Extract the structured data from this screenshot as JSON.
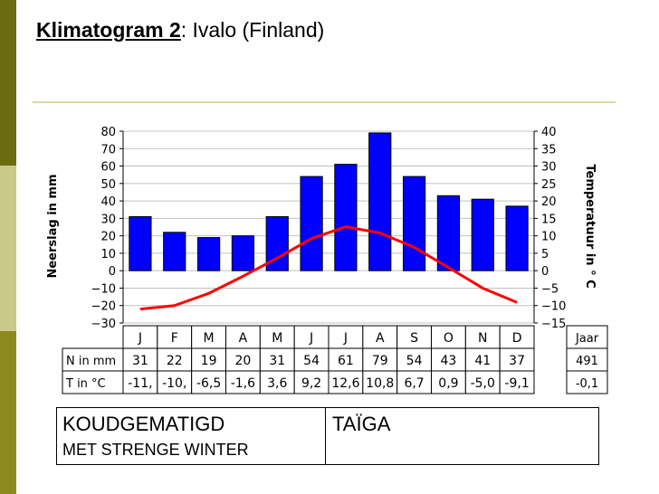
{
  "slide": {
    "title_bold": "Klimatogram 2",
    "title_rest": ": Ivalo (Finland)"
  },
  "chart_data": {
    "type": "bar",
    "categories": [
      "J",
      "F",
      "M",
      "A",
      "M",
      "J",
      "J",
      "A",
      "S",
      "O",
      "N",
      "D"
    ],
    "series": [
      {
        "name": "N in mm",
        "type": "bar",
        "axis": "left",
        "color": "#0000ff",
        "values": [
          31,
          22,
          19,
          20,
          31,
          54,
          61,
          79,
          54,
          43,
          41,
          37
        ]
      },
      {
        "name": "T in °C",
        "type": "line",
        "axis": "right",
        "color": "#ff0000",
        "values": [
          -11,
          -10,
          -6.5,
          -1.6,
          3.6,
          9.2,
          12.6,
          10.8,
          6.7,
          0.9,
          -5.0,
          -9.1
        ]
      }
    ],
    "ylabel_left": "Neerslag in mm",
    "ylabel_right": "Temperatuur in ° C",
    "ylim_left": [
      -30,
      80
    ],
    "ylim_right": [
      -15,
      40
    ],
    "yticks_left": [
      "80",
      "70",
      "60",
      "50",
      "40",
      "30",
      "20",
      "10",
      "0",
      "−10",
      "−20",
      "−30"
    ],
    "yticks_right": [
      "40",
      "35",
      "30",
      "25",
      "20",
      "15",
      "10",
      "5",
      "0",
      "−5",
      "−10",
      "−15"
    ],
    "grid": true,
    "table": {
      "row_labels": [
        "N in mm",
        "T in °C"
      ],
      "n_values": [
        "31",
        "22",
        "19",
        "20",
        "31",
        "54",
        "61",
        "79",
        "54",
        "43",
        "41",
        "37"
      ],
      "t_values": [
        "-11,",
        "-10,",
        "-6,5",
        "-1,6",
        "3,6",
        "9,2",
        "12,6",
        "10,8",
        "6,7",
        "0,9",
        "-5,0",
        "-9,1"
      ],
      "year_label": "Jaar",
      "year_n": "491",
      "year_t": "-0,1"
    }
  },
  "box": {
    "climate": "KOUDGEMATIGD",
    "subtype": "MET STRENGE WINTER",
    "vegetation": "TAÏGA"
  },
  "colors": {
    "bar": "#0000ff",
    "line": "#ff0000",
    "grid": "#c0c0c0",
    "sidebar_dark": "#6b6b10",
    "sidebar_light": "#c9c98a"
  }
}
